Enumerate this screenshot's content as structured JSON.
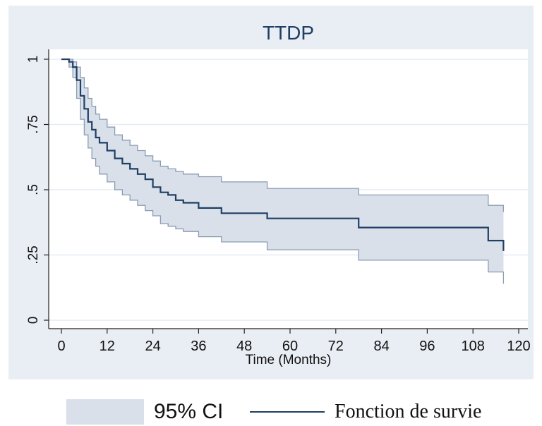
{
  "chart_data": {
    "type": "line",
    "title": "TTDP",
    "xlabel": "Time (Months)",
    "ylabel": "",
    "xlim": [
      0,
      120
    ],
    "ylim": [
      0,
      1
    ],
    "x_ticks": [
      0,
      12,
      24,
      36,
      48,
      60,
      72,
      84,
      96,
      108,
      120
    ],
    "x_tick_labels": [
      "0",
      "12",
      "24",
      "36",
      "48",
      "60",
      "72",
      "84",
      "96",
      "108",
      "120"
    ],
    "y_ticks": [
      0,
      0.25,
      0.5,
      0.75,
      1
    ],
    "y_tick_labels": [
      "0",
      ".25",
      ".5",
      ".75",
      "1"
    ],
    "grid": "horizontal",
    "legend_position": "bottom",
    "colors": {
      "line": "#1f3f64",
      "ci_fill": "#d9e0ea",
      "ci_edge": "#8a9bb3",
      "title": "#1f3f64",
      "frame": "#e9eef4"
    },
    "series": [
      {
        "name": "Fonction de survie",
        "style": "step",
        "x": [
          0,
          2,
          3,
          4,
          5,
          6,
          7,
          8,
          9,
          10,
          12,
          14,
          16,
          18,
          20,
          22,
          24,
          26,
          28,
          30,
          32,
          36,
          42,
          54,
          78,
          112,
          116
        ],
        "y": [
          1.0,
          0.99,
          0.97,
          0.92,
          0.86,
          0.81,
          0.76,
          0.73,
          0.7,
          0.68,
          0.65,
          0.62,
          0.6,
          0.58,
          0.56,
          0.54,
          0.51,
          0.49,
          0.48,
          0.46,
          0.45,
          0.43,
          0.41,
          0.39,
          0.355,
          0.305,
          0.265
        ]
      }
    ],
    "ci": {
      "name": "95% CI",
      "x": [
        0,
        2,
        3,
        4,
        5,
        6,
        7,
        8,
        9,
        10,
        12,
        14,
        16,
        18,
        20,
        22,
        24,
        26,
        28,
        30,
        32,
        36,
        42,
        54,
        78,
        112,
        116
      ],
      "upper": [
        1.0,
        1.0,
        0.99,
        0.97,
        0.93,
        0.89,
        0.85,
        0.82,
        0.79,
        0.77,
        0.74,
        0.71,
        0.69,
        0.67,
        0.65,
        0.63,
        0.61,
        0.59,
        0.58,
        0.57,
        0.56,
        0.55,
        0.53,
        0.505,
        0.48,
        0.44,
        0.415
      ],
      "lower": [
        1.0,
        0.97,
        0.93,
        0.85,
        0.77,
        0.71,
        0.66,
        0.62,
        0.59,
        0.56,
        0.53,
        0.5,
        0.48,
        0.46,
        0.44,
        0.42,
        0.4,
        0.37,
        0.36,
        0.35,
        0.34,
        0.32,
        0.3,
        0.27,
        0.23,
        0.185,
        0.14
      ]
    }
  },
  "legend": {
    "ci_label": "95% CI",
    "survival_label": "Fonction de survie"
  }
}
